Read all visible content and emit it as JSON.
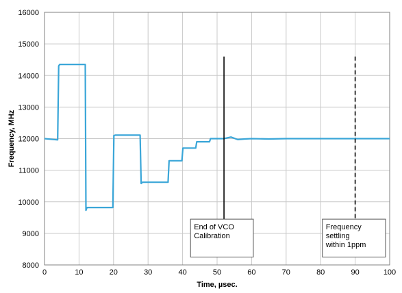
{
  "chart_data": {
    "type": "line",
    "title": "",
    "xlabel": "Time, µsec.",
    "ylabel": "Frequency, MHz",
    "xlim": [
      0,
      100
    ],
    "ylim": [
      8000,
      16000
    ],
    "x_ticks": [
      0,
      10,
      20,
      30,
      40,
      50,
      60,
      70,
      80,
      90,
      100
    ],
    "y_ticks": [
      8000,
      9000,
      10000,
      11000,
      12000,
      13000,
      14000,
      15000,
      16000
    ],
    "grid": true,
    "legend": "none",
    "series": [
      {
        "color": "#3aa6d8",
        "x": [
          0,
          3.8,
          4.1,
          4.4,
          5.0,
          11.8,
          12.0,
          12.3,
          12.7,
          19.8,
          20.1,
          20.5,
          27.7,
          28.0,
          28.4,
          29.0,
          35.8,
          36.1,
          36.5,
          39.8,
          40.1,
          40.5,
          43.8,
          44.1,
          44.5,
          47.8,
          48.1,
          48.5,
          52.0,
          54.0,
          56.0,
          58.0,
          60.0,
          65,
          70,
          80,
          90,
          100
        ],
        "y": [
          12000,
          11960,
          14300,
          14350,
          14350,
          14350,
          9730,
          9820,
          9820,
          9820,
          12100,
          12110,
          12110,
          10580,
          10620,
          10620,
          10620,
          11300,
          11300,
          11300,
          11700,
          11700,
          11700,
          11900,
          11900,
          11900,
          12000,
          12000,
          12000,
          12050,
          11970,
          11990,
          12000,
          11990,
          12000,
          12000,
          12000,
          12000
        ]
      }
    ],
    "annotations": [
      {
        "text_lines": [
          "End of VCO",
          " Calibration"
        ],
        "line_x": 52,
        "line_y_range": [
          9450,
          14600
        ],
        "line_style": "solid",
        "box_x_range": [
          42.3,
          60.5
        ],
        "box_y_range": [
          8250,
          9450
        ]
      },
      {
        "text_lines": [
          "Frequency",
          "settling",
          "within  1ppm"
        ],
        "line_x": 90,
        "line_y_range": [
          9450,
          14600
        ],
        "line_style": "dashed",
        "box_x_range": [
          80.5,
          98.8
        ],
        "box_y_range": [
          8250,
          9450
        ]
      }
    ]
  }
}
